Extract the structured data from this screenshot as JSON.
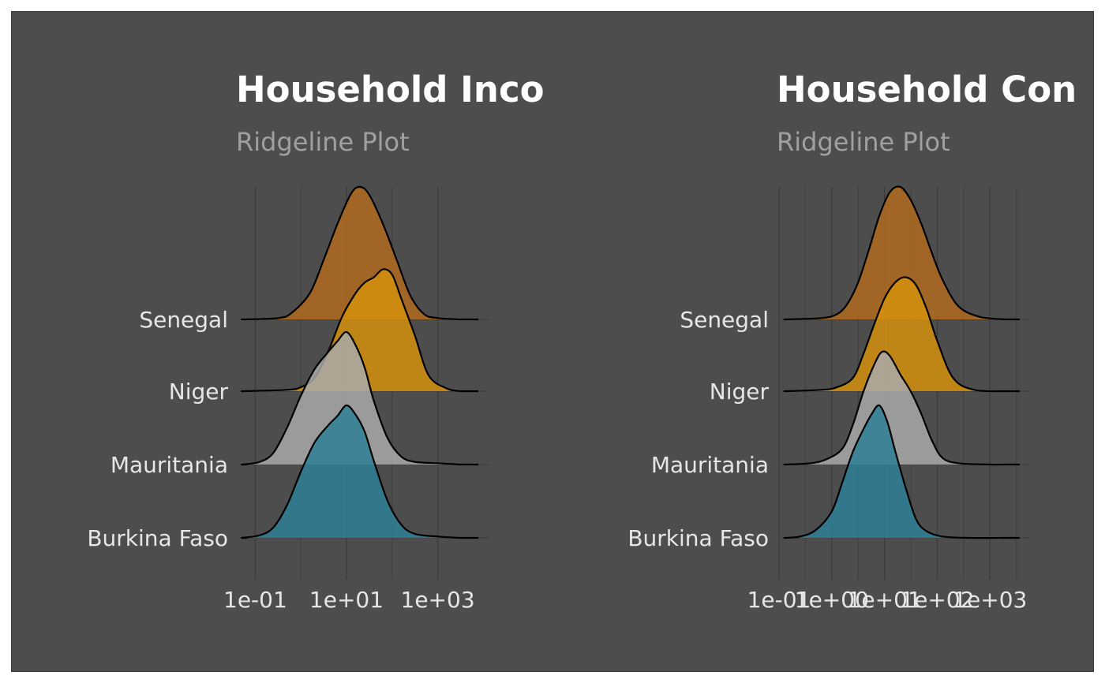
{
  "chart_data": [
    {
      "type": "ridgeline",
      "title": "Household Inco",
      "subtitle": "Ridgeline Plot",
      "x_scale": "log10",
      "x_range": [
        0.05,
        5000
      ],
      "x_ticks": [
        0.1,
        10,
        1000
      ],
      "x_tick_labels": [
        "1e-01",
        "1e+01",
        "1e+03"
      ],
      "categories": [
        "Burkina Faso",
        "Mauritania",
        "Niger",
        "Senegal"
      ],
      "series": [
        {
          "name": "Burkina Faso",
          "color": "#2f7f95",
          "log10_x": [
            -1.3,
            -0.9,
            -0.6,
            -0.3,
            0.0,
            0.3,
            0.6,
            0.8,
            1.0,
            1.2,
            1.4,
            1.6,
            1.9,
            2.2,
            2.5,
            3.0,
            3.5
          ],
          "density": [
            0.0,
            0.02,
            0.08,
            0.25,
            0.5,
            0.72,
            0.85,
            0.92,
            1.0,
            0.93,
            0.8,
            0.58,
            0.28,
            0.1,
            0.03,
            0.01,
            0.0
          ]
        },
        {
          "name": "Mauritania",
          "color": "#a9a9a9",
          "log10_x": [
            -1.3,
            -0.9,
            -0.6,
            -0.3,
            0.0,
            0.3,
            0.6,
            0.8,
            1.0,
            1.2,
            1.4,
            1.6,
            1.9,
            2.2,
            2.5,
            3.0,
            3.5
          ],
          "density": [
            0.0,
            0.02,
            0.09,
            0.28,
            0.52,
            0.72,
            0.85,
            0.93,
            1.0,
            0.9,
            0.73,
            0.48,
            0.2,
            0.06,
            0.02,
            0.01,
            0.0
          ]
        },
        {
          "name": "Niger",
          "color": "#d4900e",
          "log10_x": [
            -1.3,
            -0.3,
            0.0,
            0.3,
            0.6,
            0.9,
            1.2,
            1.4,
            1.6,
            1.8,
            2.0,
            2.2,
            2.5,
            2.8,
            3.2,
            3.5
          ],
          "density": [
            0.0,
            0.01,
            0.03,
            0.1,
            0.3,
            0.56,
            0.74,
            0.82,
            0.86,
            0.92,
            0.88,
            0.7,
            0.42,
            0.12,
            0.02,
            0.0
          ]
        },
        {
          "name": "Senegal",
          "color": "#b06a20",
          "log10_x": [
            -1.3,
            -0.5,
            -0.2,
            0.2,
            0.5,
            0.8,
            1.1,
            1.3,
            1.5,
            1.8,
            2.1,
            2.4,
            2.7,
            3.0,
            3.5
          ],
          "density": [
            0.0,
            0.01,
            0.05,
            0.2,
            0.45,
            0.72,
            0.95,
            1.0,
            0.94,
            0.72,
            0.45,
            0.18,
            0.04,
            0.01,
            0.0
          ]
        }
      ]
    },
    {
      "type": "ridgeline",
      "title": "Household Con",
      "subtitle": "Ridgeline Plot",
      "x_scale": "log10",
      "x_range": [
        0.1,
        5000
      ],
      "x_ticks": [
        0.1,
        1,
        10,
        100,
        1000
      ],
      "x_tick_labels": [
        "1e-01",
        "1e+00",
        "1e+01",
        "1e+02",
        "1e+03"
      ],
      "categories": [
        "Burkina Faso",
        "Mauritania",
        "Niger",
        "Senegal"
      ],
      "series": [
        {
          "name": "Burkina Faso",
          "color": "#2f7f95",
          "log10_x": [
            -0.9,
            -0.6,
            -0.3,
            0.0,
            0.2,
            0.4,
            0.6,
            0.75,
            0.9,
            1.05,
            1.2,
            1.4,
            1.6,
            1.8,
            2.1,
            2.6,
            3.3
          ],
          "density": [
            0.0,
            0.01,
            0.06,
            0.2,
            0.42,
            0.65,
            0.82,
            0.93,
            1.0,
            0.88,
            0.66,
            0.38,
            0.14,
            0.05,
            0.01,
            0.0,
            0.0
          ]
        },
        {
          "name": "Mauritania",
          "color": "#a9a9a9",
          "log10_x": [
            -0.9,
            -0.4,
            -0.1,
            0.2,
            0.4,
            0.6,
            0.8,
            0.95,
            1.1,
            1.3,
            1.5,
            1.7,
            1.9,
            2.1,
            2.4,
            3.0,
            3.3
          ],
          "density": [
            0.0,
            0.01,
            0.04,
            0.12,
            0.3,
            0.55,
            0.75,
            0.85,
            0.82,
            0.68,
            0.55,
            0.38,
            0.18,
            0.05,
            0.01,
            0.0,
            0.0
          ]
        },
        {
          "name": "Niger",
          "color": "#d4900e",
          "log10_x": [
            -0.9,
            -0.2,
            0.1,
            0.4,
            0.6,
            0.8,
            1.0,
            1.2,
            1.4,
            1.6,
            1.8,
            2.0,
            2.3,
            2.7,
            3.3
          ],
          "density": [
            0.0,
            0.01,
            0.03,
            0.1,
            0.28,
            0.5,
            0.7,
            0.82,
            0.86,
            0.8,
            0.62,
            0.38,
            0.1,
            0.01,
            0.0
          ]
        },
        {
          "name": "Senegal",
          "color": "#b06a20",
          "log10_x": [
            -0.9,
            -0.2,
            0.1,
            0.3,
            0.5,
            0.7,
            0.9,
            1.1,
            1.3,
            1.5,
            1.7,
            1.9,
            2.1,
            2.4,
            2.8,
            3.3
          ],
          "density": [
            0.0,
            0.01,
            0.04,
            0.12,
            0.28,
            0.52,
            0.78,
            0.96,
            1.0,
            0.9,
            0.72,
            0.5,
            0.3,
            0.1,
            0.02,
            0.0
          ]
        }
      ]
    }
  ]
}
